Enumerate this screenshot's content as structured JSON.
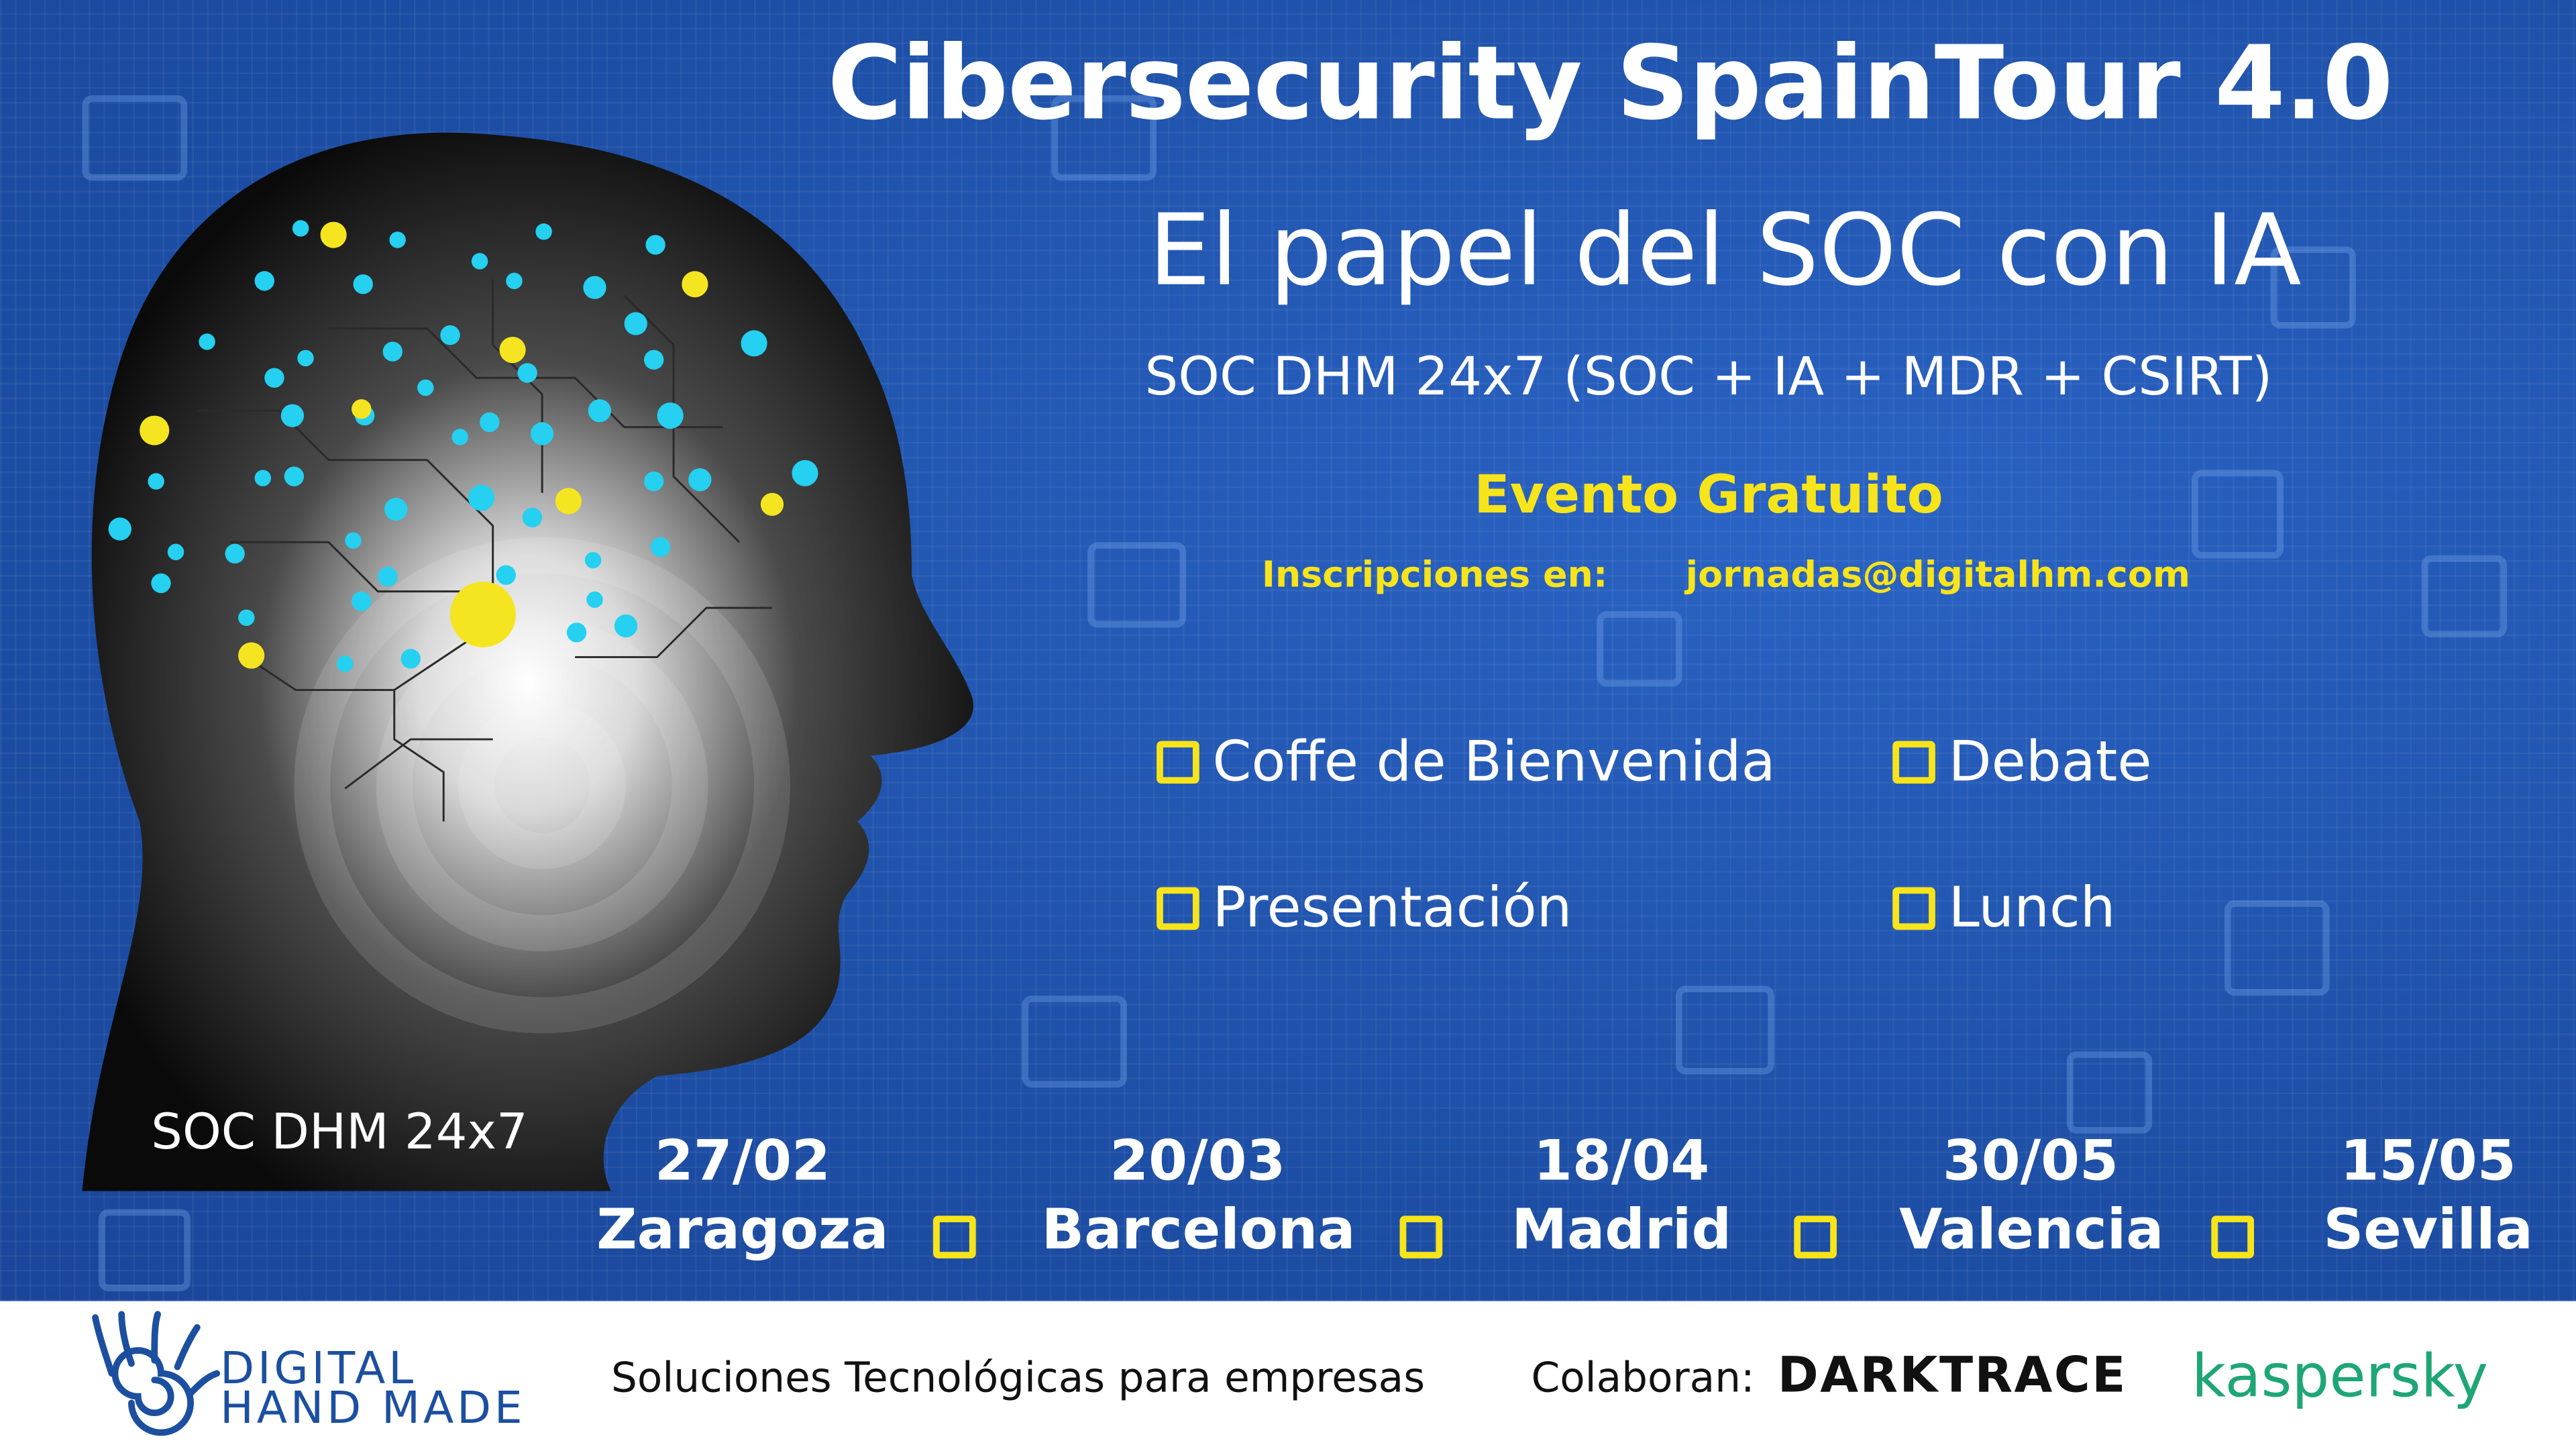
{
  "header": {
    "title": "Cibersecurity SpainTour 4.0",
    "subtitle": "El papel del SOC con IA",
    "tagline": "SOC DHM 24x7 (SOC + IA + MDR + CSIRT)"
  },
  "event": {
    "free_label": "Evento Gratuito",
    "registration_label": "Inscripciones en:",
    "registration_email": "jornadas@digitalhm.com"
  },
  "agenda": [
    {
      "label": "Coffe de Bienvenida"
    },
    {
      "label": "Debate"
    },
    {
      "label": "Presentación"
    },
    {
      "label": "Lunch"
    }
  ],
  "head_caption": "SOC DHM 24x7",
  "cities": [
    {
      "date": "27/02",
      "name": "Zaragoza"
    },
    {
      "date": "20/03",
      "name": "Barcelona"
    },
    {
      "date": "18/04",
      "name": "Madrid"
    },
    {
      "date": "30/05",
      "name": "Valencia"
    },
    {
      "date": "15/05",
      "name": "Sevilla"
    }
  ],
  "footer": {
    "brand_line1": "Digital",
    "brand_line2": "Hand Made",
    "slogan": "Soluciones Tecnológicas para empresas",
    "collab_label": "Colaboran:",
    "partner1": "DARKTRACE",
    "partner2": "kaspersky"
  },
  "colors": {
    "background": "#1f56b0",
    "accent_yellow": "#f7e41a",
    "dot_cyan": "#25d0f0",
    "brand_blue": "#1c4fa0",
    "kaspersky_green": "#1ea676"
  }
}
